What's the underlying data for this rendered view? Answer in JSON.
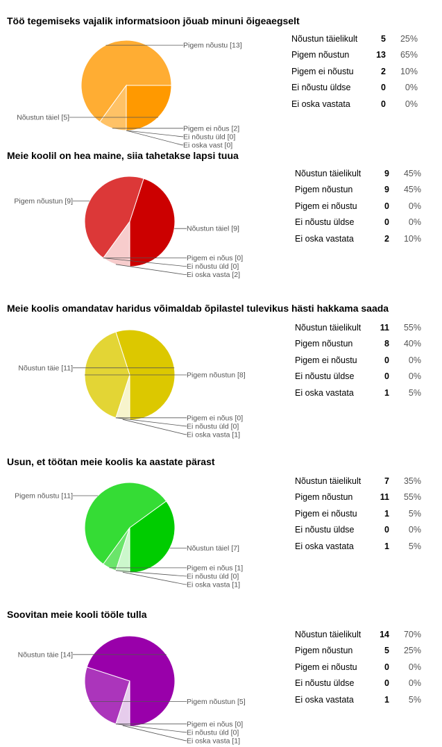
{
  "chart_data": [
    {
      "type": "pie",
      "title": "Töö tegemiseks vajalik informatsioon jõuab minuni õigeaegselt",
      "colors": [
        "#ff9900",
        "#ffad33",
        "#ffc266",
        "#ffd699",
        "#ffebcc"
      ],
      "slices": [
        {
          "name": "Nõustun täielikult",
          "value": 5,
          "percent": "25%",
          "chart_label": "Nõustun täiel [5]"
        },
        {
          "name": "Pigem nõustun",
          "value": 13,
          "percent": "65%",
          "chart_label": "Pigem nõustu [13]"
        },
        {
          "name": "Pigem ei nõustu",
          "value": 2,
          "percent": "10%",
          "chart_label": "Pigem ei nõus [2]"
        },
        {
          "name": "Ei nõustu üldse",
          "value": 0,
          "percent": "0%",
          "chart_label": "Ei nõustu üld [0]"
        },
        {
          "name": "Ei oska vastata",
          "value": 0,
          "percent": "0%",
          "chart_label": "Ei oska vast [0]"
        }
      ]
    },
    {
      "type": "pie",
      "title": "Meie koolil on hea maine, siia tahetakse lapsi tuua",
      "colors": [
        "#cc0000",
        "#dc3838",
        "#e56c6c",
        "#ef9f9f",
        "#f7cccc"
      ],
      "slices": [
        {
          "name": "Nõustun täielikult",
          "value": 9,
          "percent": "45%",
          "chart_label": "Nõustun täiel [9]"
        },
        {
          "name": "Pigem nõustun",
          "value": 9,
          "percent": "45%",
          "chart_label": "Pigem nõustun [9]"
        },
        {
          "name": "Pigem ei nõustu",
          "value": 0,
          "percent": "0%",
          "chart_label": "Pigem ei nõus [0]"
        },
        {
          "name": "Ei nõustu üldse",
          "value": 0,
          "percent": "0%",
          "chart_label": "Ei nõustu üld [0]"
        },
        {
          "name": "Ei oska vastata",
          "value": 2,
          "percent": "10%",
          "chart_label": "Ei oska vasta [2]"
        }
      ]
    },
    {
      "type": "pie",
      "title": "Meie koolis omandatav haridus võimaldab õpilastel tulevikus hästi hakkama saada",
      "colors": [
        "#dcc800",
        "#e3d535",
        "#eadf6a",
        "#f0ea9e",
        "#f7f4cc"
      ],
      "slices": [
        {
          "name": "Nõustun täielikult",
          "value": 11,
          "percent": "55%",
          "chart_label": "Nõustun täie [11]"
        },
        {
          "name": "Pigem nõustun",
          "value": 8,
          "percent": "40%",
          "chart_label": "Pigem nõustun [8]"
        },
        {
          "name": "Pigem ei nõustu",
          "value": 0,
          "percent": "0%",
          "chart_label": "Pigem ei nõus [0]"
        },
        {
          "name": "Ei nõustu üldse",
          "value": 0,
          "percent": "0%",
          "chart_label": "Ei nõustu üld [0]"
        },
        {
          "name": "Ei oska vastata",
          "value": 1,
          "percent": "5%",
          "chart_label": "Ei oska vasta [1]"
        }
      ]
    },
    {
      "type": "pie",
      "title": "Usun, et töötan meie koolis ka aastate pärast",
      "colors": [
        "#00cc00",
        "#35dc35",
        "#6ae56a",
        "#9fef9f",
        "#ccf7cc"
      ],
      "slices": [
        {
          "name": "Nõustun täielikult",
          "value": 7,
          "percent": "35%",
          "chart_label": "Nõustun täiel [7]"
        },
        {
          "name": "Pigem nõustun",
          "value": 11,
          "percent": "55%",
          "chart_label": "Pigem nõustu [11]"
        },
        {
          "name": "Pigem ei nõustu",
          "value": 1,
          "percent": "5%",
          "chart_label": "Pigem ei nõus [1]"
        },
        {
          "name": "Ei nõustu üldse",
          "value": 0,
          "percent": "0%",
          "chart_label": "Ei nõustu üld [0]"
        },
        {
          "name": "Ei oska vastata",
          "value": 1,
          "percent": "5%",
          "chart_label": "Ei oska vasta [1]"
        }
      ]
    },
    {
      "type": "pie",
      "title": "Soovitan meie kooli tööle tulla",
      "colors": [
        "#9900aa",
        "#ab35bb",
        "#bd6ac9",
        "#d19fd9",
        "#e6ccec"
      ],
      "slices": [
        {
          "name": "Nõustun täielikult",
          "value": 14,
          "percent": "70%",
          "chart_label": "Nõustun täie [14]"
        },
        {
          "name": "Pigem nõustun",
          "value": 5,
          "percent": "25%",
          "chart_label": "Pigem nõustun [5]"
        },
        {
          "name": "Pigem ei nõustu",
          "value": 0,
          "percent": "0%",
          "chart_label": "Pigem ei nõus [0]"
        },
        {
          "name": "Ei nõustu üldse",
          "value": 0,
          "percent": "0%",
          "chart_label": "Ei nõustu üld [0]"
        },
        {
          "name": "Ei oska vastata",
          "value": 1,
          "percent": "5%",
          "chart_label": "Ei oska vasta [1]"
        }
      ]
    }
  ]
}
